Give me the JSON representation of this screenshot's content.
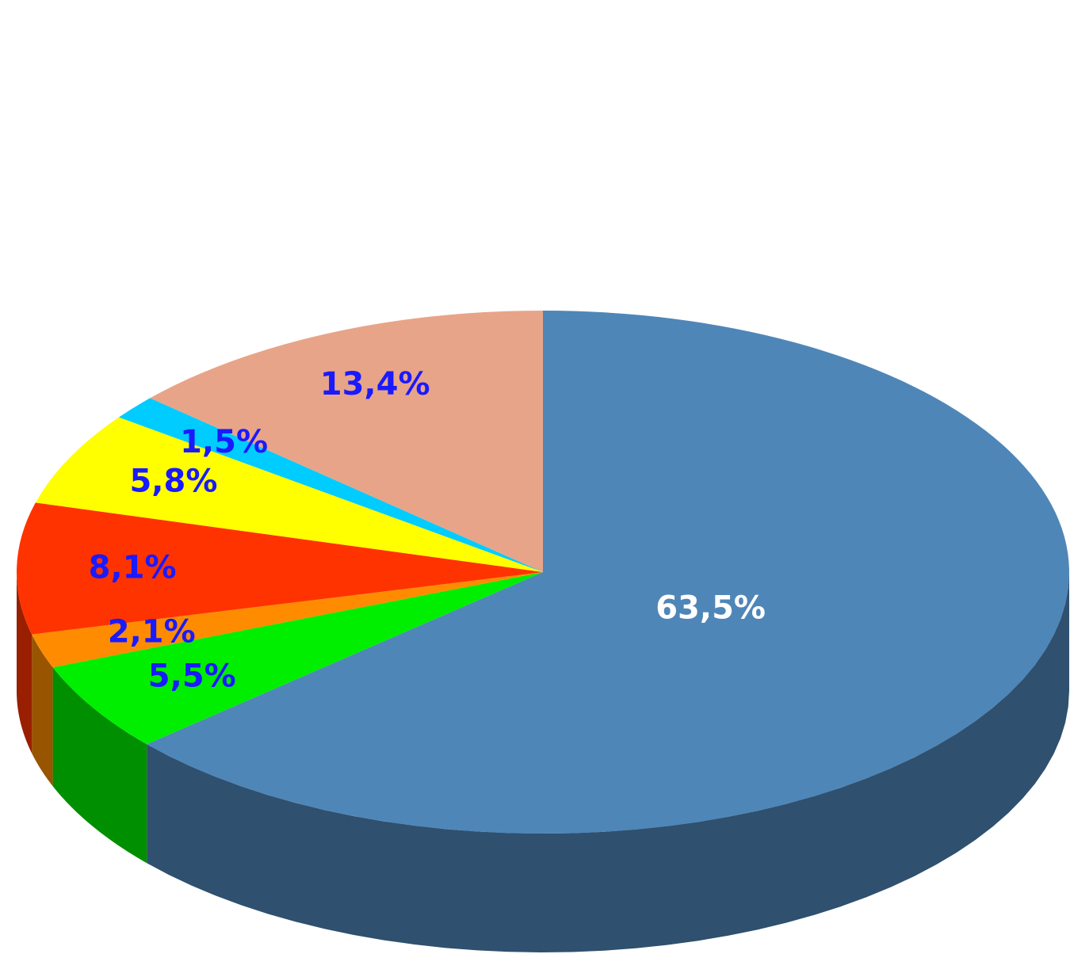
{
  "chart_data": {
    "type": "pie",
    "values": [
      63.5,
      5.5,
      2.1,
      8.1,
      5.8,
      1.5,
      13.4
    ],
    "value_labels": [
      "63,5%",
      "5,5%",
      "2,1%",
      "8,1%",
      "5,8%",
      "1,5%",
      "13,4%"
    ],
    "colors": [
      "#4f86b8",
      "#00ee00",
      "#ff8c00",
      "#ff3300",
      "#ffff00",
      "#00ccff",
      "#e8a488"
    ],
    "label_colors": [
      "#ffffff",
      "#1a1aff",
      "#1a1aff",
      "#1a1aff",
      "#1a1aff",
      "#1a1aff",
      "#1a1aff"
    ]
  }
}
